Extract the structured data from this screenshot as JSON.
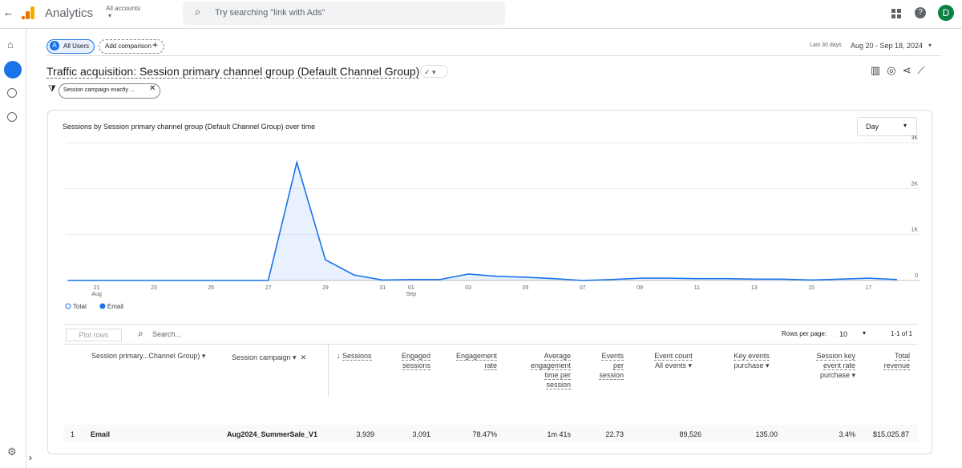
{
  "header": {
    "app_name": "Analytics",
    "account": "All accounts",
    "search_placeholder": "Try searching \"link with Ads\"",
    "avatar": "D"
  },
  "toolbar": {
    "segment": "All Users",
    "add_comparison": "Add comparison",
    "range_label": "Last 30 days",
    "date_range": "Aug 20 - Sep 18, 2024"
  },
  "report": {
    "title": "Traffic acquisition: Session primary channel group (Default Channel Group)",
    "filter": "Session campaign exactly ..."
  },
  "chart_data": {
    "type": "line",
    "title": "Sessions by Session primary channel group (Default Channel Group) over time",
    "interval": "Day",
    "categories": [
      null,
      "21",
      null,
      "23",
      null,
      "25",
      null,
      "27",
      null,
      "29",
      null,
      "31",
      "01",
      null,
      "03",
      null,
      "05",
      null,
      "07",
      null,
      "09",
      null,
      "11",
      null,
      "13",
      null,
      "15",
      null,
      "17",
      null
    ],
    "month_labels": [
      {
        "category": 1,
        "label": "Aug"
      },
      {
        "category": 12,
        "label": "Sep"
      }
    ],
    "series": [
      {
        "name": "Total",
        "color": "#1a73e8",
        "visible": false
      },
      {
        "name": "Email",
        "color": "#1a73e8",
        "visible": true,
        "values": [
          0,
          0,
          0,
          0,
          0,
          0,
          0,
          0,
          2570,
          450,
          120,
          10,
          20,
          20,
          140,
          90,
          70,
          40,
          0,
          20,
          50,
          50,
          40,
          40,
          30,
          30,
          10,
          30,
          50,
          20
        ]
      }
    ],
    "ylim": [
      0,
      3000
    ],
    "yticks": [
      0,
      {
        "value": 1000,
        "label": "1K"
      },
      {
        "value": 2000,
        "label": "2K"
      },
      {
        "value": 3000,
        "label": "3K"
      }
    ],
    "grid": true
  },
  "table": {
    "plot_rows": "Plot rows",
    "search": "Search...",
    "rows_per_page_label": "Rows per page:",
    "rows_per_page": "10",
    "pagination": "1-1 of 1",
    "headers": [
      {
        "label": "Session primary...Channel Group)"
      },
      {
        "label": "Session campaign"
      },
      {
        "label": "Sessions"
      },
      {
        "label": "Engaged sessions"
      },
      {
        "label": "Engagement rate"
      },
      {
        "label": "Average engagement time per session"
      },
      {
        "label": "Events per session"
      },
      {
        "label": "Event count",
        "sub": "All events"
      },
      {
        "label": "Key events",
        "sub": "purchase"
      },
      {
        "label": "Session key event rate",
        "sub": "purchase"
      },
      {
        "label": "Total revenue"
      }
    ],
    "rows": [
      [
        "1",
        "Email",
        "Aug2024_SummerSale_V1",
        "3,939",
        "3,091",
        "78.47%",
        "1m 41s",
        "22.73",
        "89,526",
        "135.00",
        "3.4%",
        "$15,025.87"
      ]
    ]
  }
}
